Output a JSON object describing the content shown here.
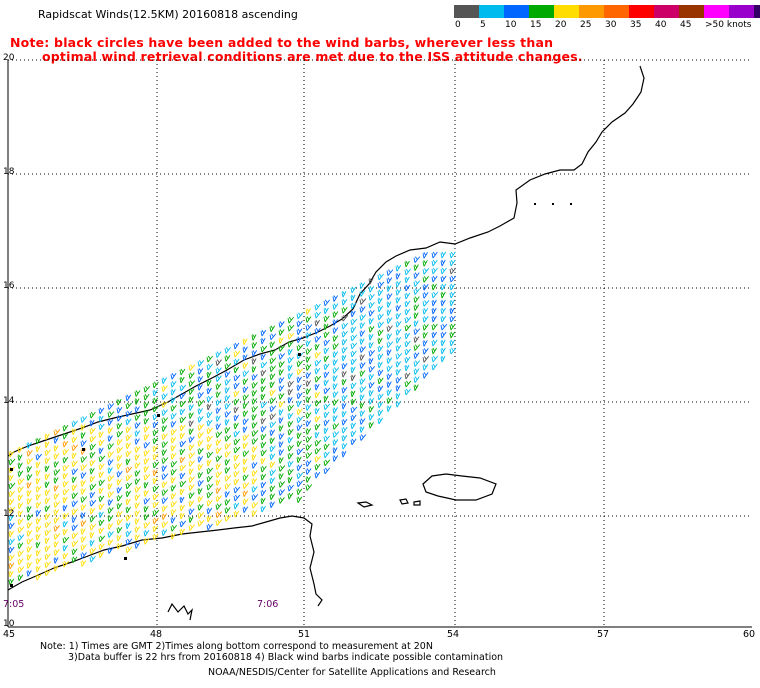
{
  "title": "Rapidscat Winds(12.5KM) 20160818 ascending",
  "notice": {
    "line1": "Note: black circles have been added to the wind barbs, wherever less than",
    "line2": "optimal wind retrieval conditions are met due to the ISS attitude changes."
  },
  "legend": {
    "colors": [
      "#555555",
      "#00bbee",
      "#0066ff",
      "#00aa00",
      "#ffdd00",
      "#ff9900",
      "#ff6600",
      "#ff0000",
      "#cc0066",
      "#993300",
      "#ff00ff",
      "#9900cc",
      "#330066"
    ],
    "labels": [
      "0",
      "5",
      "10",
      "15",
      "20",
      "25",
      "30",
      "35",
      "40",
      "45",
      ">50 knots"
    ]
  },
  "axes": {
    "x_ticks": [
      "45",
      "48",
      "51",
      "54",
      "57",
      "60"
    ],
    "y_ticks": [
      "20",
      "18",
      "16",
      "14",
      "12",
      "10"
    ]
  },
  "time_labels": [
    "7:05",
    "7:06"
  ],
  "footer": {
    "line1": "Note: 1) Times are GMT 2)Times along bottom correspond to measurement at 20N",
    "line2": "3)Data buffer is 22 hrs from 20160818 4) Black wind barbs indicate possible contamination",
    "line3": "NOAA/NESDIS/Center for Satellite Applications and Research"
  },
  "map_data": {
    "lon_range": [
      45,
      60
    ],
    "lat_range": [
      10,
      20
    ],
    "wind_speed_colors": {
      "calm": "#555555",
      "5-10": "#00bbee",
      "10-15": "#0066ff",
      "15-20": "#00aa00",
      "20-25": "#ffdd00",
      "25-30": "#ff9900"
    }
  }
}
